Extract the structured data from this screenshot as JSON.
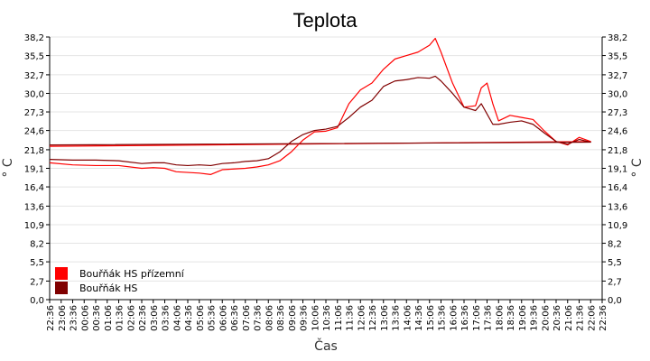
{
  "chart_data": {
    "type": "line",
    "title": "Teplota",
    "xlabel": "Čas",
    "ylabel": "° C",
    "ylim": [
      0,
      38.2
    ],
    "y_ticks": [
      "0,0",
      "2,7",
      "5,5",
      "8,2",
      "10,9",
      "13,6",
      "16,4",
      "19,1",
      "21,8",
      "24,6",
      "27,3",
      "30,0",
      "32,7",
      "35,5",
      "38,2"
    ],
    "x_ticks": [
      "22:36",
      "23:06",
      "23:36",
      "00:06",
      "00:36",
      "01:06",
      "01:36",
      "02:06",
      "02:36",
      "03:06",
      "03:36",
      "04:06",
      "04:36",
      "05:06",
      "05:36",
      "06:06",
      "06:36",
      "07:06",
      "07:36",
      "08:06",
      "08:36",
      "09:06",
      "09:36",
      "10:06",
      "10:36",
      "11:06",
      "11:36",
      "12:06",
      "12:36",
      "13:06",
      "13:36",
      "14:06",
      "14:36",
      "15:06",
      "15:36",
      "16:06",
      "16:36",
      "17:06",
      "17:36",
      "18:06",
      "18:36",
      "19:06",
      "19:36",
      "20:06",
      "20:36",
      "21:06",
      "21:36",
      "22:06",
      "22:36"
    ],
    "grid": true,
    "legend_position": "bottom-left",
    "series": [
      {
        "name": "Bouřňák HS přízemní",
        "color": "#ff0000",
        "x": [
          "22:36",
          "23:36",
          "00:36",
          "01:36",
          "02:36",
          "03:06",
          "03:36",
          "04:06",
          "04:36",
          "05:06",
          "05:36",
          "06:06",
          "06:36",
          "07:06",
          "07:36",
          "08:06",
          "08:36",
          "09:06",
          "09:36",
          "10:06",
          "10:36",
          "11:06",
          "11:36",
          "12:06",
          "12:36",
          "13:06",
          "13:36",
          "14:06",
          "14:36",
          "15:06",
          "15:21",
          "15:36",
          "16:06",
          "16:36",
          "17:06",
          "17:21",
          "17:36",
          "17:51",
          "18:06",
          "18:36",
          "19:06",
          "19:36",
          "20:06",
          "20:36",
          "21:06",
          "21:36",
          "22:06",
          "22:36"
        ],
        "values": [
          19.9,
          19.6,
          19.5,
          19.5,
          19.1,
          19.2,
          19.1,
          18.6,
          18.5,
          18.4,
          18.2,
          18.9,
          19.0,
          19.1,
          19.3,
          19.6,
          20.2,
          21.5,
          23.2,
          24.4,
          24.5,
          25.0,
          28.5,
          30.5,
          31.5,
          33.5,
          35.0,
          35.5,
          36.0,
          37.0,
          38.0,
          36.0,
          31.5,
          28.0,
          28.2,
          30.8,
          31.5,
          28.5,
          26.0,
          26.8,
          26.5,
          26.2,
          24.5,
          23.0,
          22.5,
          23.6,
          23.0,
          22.3
        ]
      },
      {
        "name": "Bouřňák HS",
        "color": "#800000",
        "x": [
          "22:36",
          "23:36",
          "00:36",
          "01:36",
          "02:36",
          "03:06",
          "03:36",
          "04:06",
          "04:36",
          "05:06",
          "05:36",
          "06:06",
          "06:36",
          "07:06",
          "07:36",
          "08:06",
          "08:36",
          "09:06",
          "09:36",
          "10:06",
          "10:36",
          "11:06",
          "11:36",
          "12:06",
          "12:36",
          "13:06",
          "13:36",
          "14:06",
          "14:36",
          "15:06",
          "15:21",
          "15:36",
          "16:06",
          "16:36",
          "17:06",
          "17:21",
          "17:36",
          "17:51",
          "18:06",
          "18:36",
          "19:06",
          "19:36",
          "20:06",
          "20:36",
          "21:06",
          "21:36",
          "22:06",
          "22:36"
        ],
        "values": [
          20.4,
          20.3,
          20.3,
          20.2,
          19.8,
          19.9,
          19.9,
          19.6,
          19.5,
          19.6,
          19.5,
          19.8,
          19.9,
          20.1,
          20.2,
          20.5,
          21.5,
          23.0,
          24.0,
          24.6,
          24.8,
          25.2,
          26.5,
          28.0,
          29.0,
          31.0,
          31.8,
          32.0,
          32.3,
          32.2,
          32.5,
          31.8,
          30.0,
          28.0,
          27.5,
          28.5,
          27.0,
          25.5,
          25.5,
          25.8,
          26.0,
          25.5,
          24.2,
          23.0,
          22.6,
          23.3,
          22.9,
          22.5
        ]
      }
    ]
  }
}
